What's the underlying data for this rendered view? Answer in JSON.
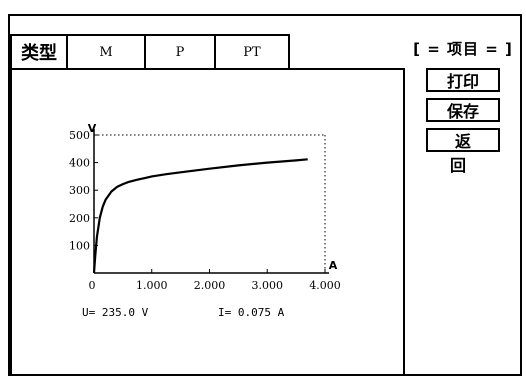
{
  "tabs": [
    {
      "label": "类型"
    },
    {
      "label": "M"
    },
    {
      "label": "P"
    },
    {
      "label": "PT"
    }
  ],
  "side": {
    "title": "[ = 项目 = ]",
    "buttons": [
      {
        "label": "打印"
      },
      {
        "label": "保存"
      },
      {
        "label": "返 回"
      }
    ]
  },
  "readouts": {
    "u": "U=  235.0 V",
    "i": "I=  0.075 A"
  },
  "chart_data": {
    "type": "line",
    "ylabel": "V",
    "xlabel": "A",
    "xlim": [
      0,
      4.0
    ],
    "ylim": [
      0,
      500
    ],
    "x_ticks": [
      "0",
      "1.000",
      "2.000",
      "3.000",
      "4.000"
    ],
    "y_ticks": [
      "100",
      "200",
      "300",
      "400",
      "500"
    ],
    "series": [
      {
        "x": [
          0.0,
          0.02,
          0.05,
          0.1,
          0.15,
          0.2,
          0.3,
          0.4,
          0.5,
          0.6,
          0.75,
          0.9,
          1.0,
          1.25,
          1.5,
          2.0,
          2.5,
          3.0,
          3.5,
          3.7
        ],
        "y": [
          0,
          60,
          130,
          200,
          240,
          265,
          295,
          312,
          322,
          330,
          338,
          345,
          350,
          358,
          365,
          378,
          390,
          400,
          408,
          412
        ]
      }
    ]
  }
}
